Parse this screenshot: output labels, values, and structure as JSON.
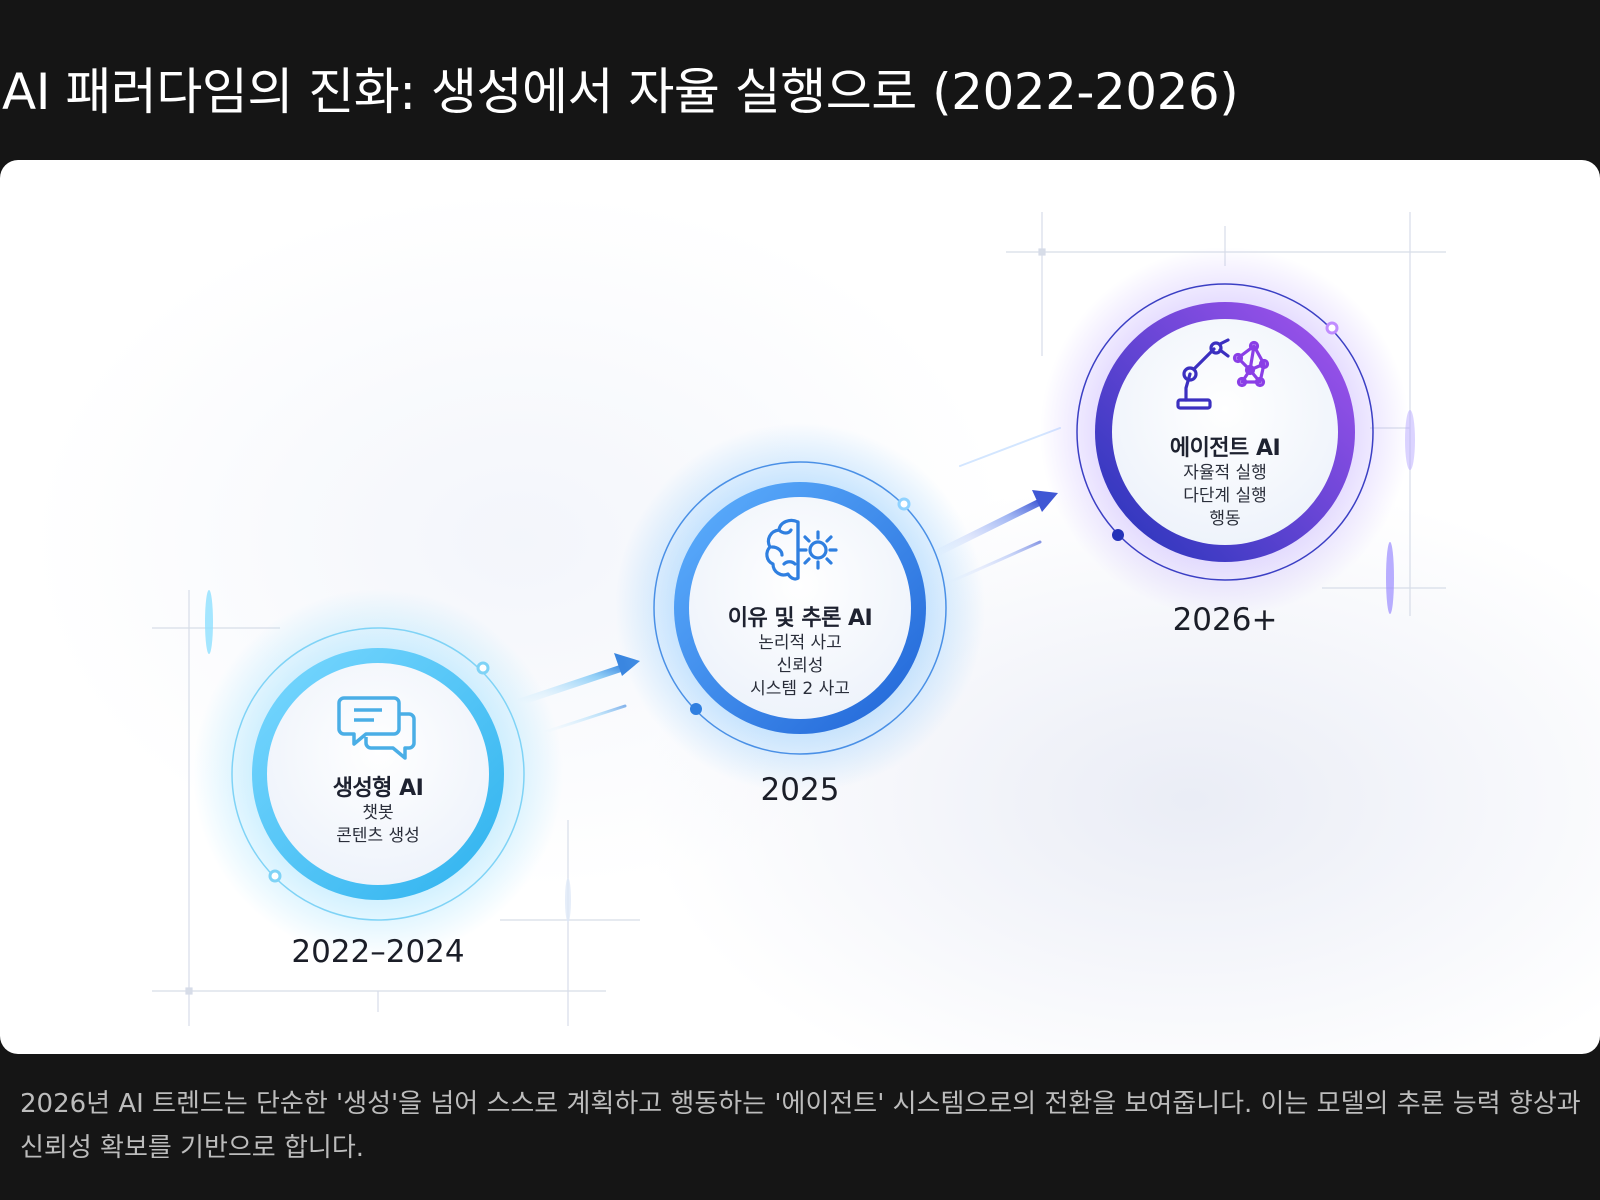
{
  "title": "AI 패러다임의 진화: 생성에서 자율 실행으로 (2022-2026)",
  "stages": [
    {
      "icon": "chat-bubbles-icon",
      "title": "생성형 AI",
      "lines": [
        "챗봇",
        "콘텐츠 생성"
      ],
      "year": "2022–2024",
      "color": "#4fc3f0"
    },
    {
      "icon": "brain-gear-icon",
      "title": "이유 및 추론 AI",
      "lines": [
        "논리적 사고",
        "신뢰성",
        "시스템 2 사고"
      ],
      "year": "2025",
      "color": "#2f7fe0"
    },
    {
      "icon": "robot-arm-network-icon",
      "title": "에이전트 AI",
      "lines": [
        "자율적 실행",
        "다단계 실행",
        "행동"
      ],
      "year": "2026+",
      "color": "#6a3fe0"
    }
  ],
  "caption": "2026년 AI 트렌드는 단순한 '생성'을 넘어 스스로 계획하고 행동하는 '에이전트' 시스템으로의 전환을 보여줍니다. 이는 모델의 추론 능력 향상과 신뢰성 확보를 기반으로 합니다."
}
